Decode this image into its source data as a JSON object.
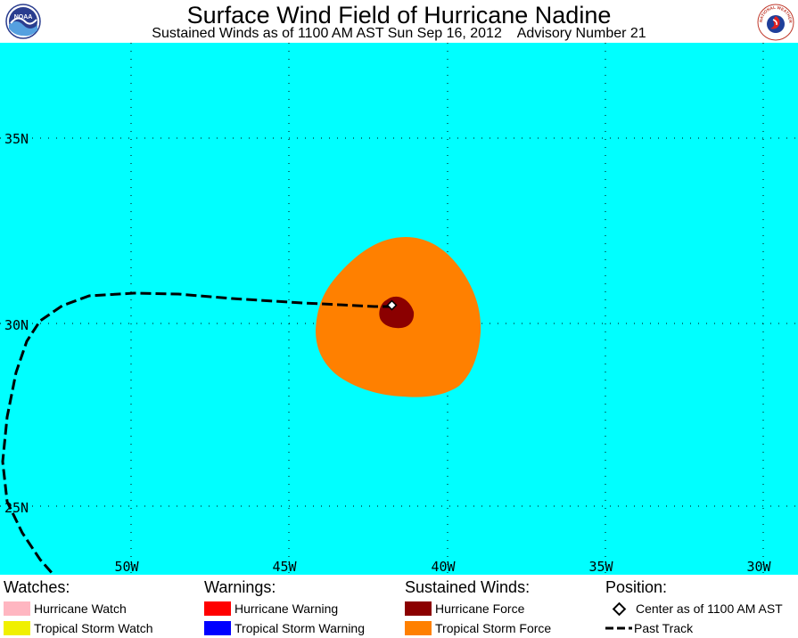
{
  "header": {
    "title": "Surface Wind Field of Hurricane Nadine",
    "subtitle": "Sustained Winds as of 1100 AM AST Sun Sep 16, 2012    Advisory Number 21",
    "left_logo": "noaa-logo",
    "left_logo_text": "NOAA",
    "right_logo": "national-weather-service-logo",
    "right_logo_text": "NATIONAL WEATHER SERVICE"
  },
  "map": {
    "ocean_color": "#00ffff",
    "grid_lat_labels": [
      "35N",
      "30N",
      "25N"
    ],
    "grid_lon_labels": [
      "50W",
      "45W",
      "40W",
      "35W",
      "30W"
    ],
    "tropical_storm_color": "#ff8000",
    "hurricane_color": "#8b0000"
  },
  "legend": {
    "watches": {
      "heading": "Watches:",
      "items": [
        {
          "label": "Hurricane Watch",
          "color": "#ffb6c1"
        },
        {
          "label": "Tropical Storm Watch",
          "color": "#f0f000"
        }
      ]
    },
    "warnings": {
      "heading": "Warnings:",
      "items": [
        {
          "label": "Hurricane Warning",
          "color": "#ff0000"
        },
        {
          "label": "Tropical Storm Warning",
          "color": "#0000ff"
        }
      ]
    },
    "winds": {
      "heading": "Sustained Winds:",
      "items": [
        {
          "label": "Hurricane Force",
          "color": "#8b0000"
        },
        {
          "label": "Tropical Storm Force",
          "color": "#ff8000"
        }
      ]
    },
    "position": {
      "heading": "Position:",
      "center_label": "Center as of 1100 AM AST",
      "track_label": "Past Track"
    }
  }
}
